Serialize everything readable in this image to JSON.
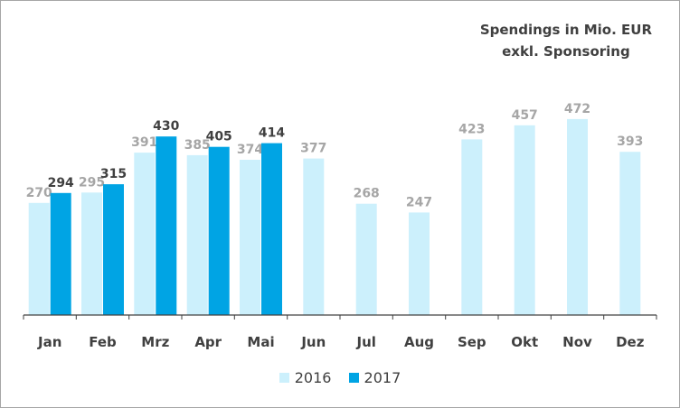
{
  "colors": {
    "series_2016": "#ccf0fc",
    "series_2017": "#00a4e4",
    "label_2016": "#a6a6a6",
    "label_2017": "#404040",
    "axis": "#404040",
    "tick_label": "#404040"
  },
  "chart_data": {
    "type": "bar",
    "title": "Spendings in Mio. EUR",
    "subtitle": "exkl. Sponsoring",
    "xlabel": "",
    "ylabel": "",
    "ylim": [
      0,
      500
    ],
    "grid": false,
    "legend": "bottom-center",
    "categories": [
      "Jan",
      "Feb",
      "Mrz",
      "Apr",
      "Mai",
      "Jun",
      "Jul",
      "Aug",
      "Sep",
      "Okt",
      "Nov",
      "Dez"
    ],
    "series": [
      {
        "name": "2016",
        "values": [
          270,
          295,
          391,
          385,
          374,
          377,
          268,
          247,
          423,
          457,
          472,
          393
        ]
      },
      {
        "name": "2017",
        "values": [
          294,
          315,
          430,
          405,
          414,
          null,
          null,
          null,
          null,
          null,
          null,
          null
        ]
      }
    ]
  }
}
